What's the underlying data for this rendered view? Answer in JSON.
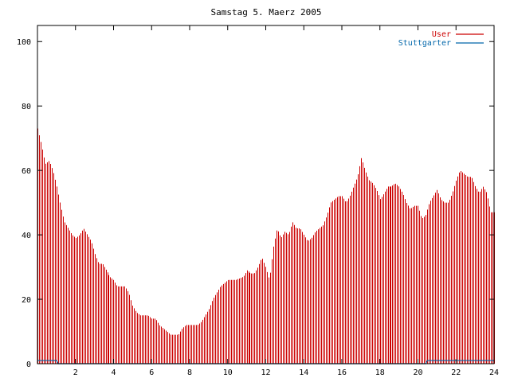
{
  "chart_data": {
    "type": "bar",
    "title": "Samstag 5. Maerz 2005",
    "xlabel": "",
    "ylabel": "",
    "xlim": [
      0,
      24
    ],
    "ylim": [
      0,
      105
    ],
    "x_ticks": [
      2,
      4,
      6,
      8,
      10,
      12,
      14,
      16,
      18,
      20,
      22,
      24
    ],
    "y_ticks": [
      0,
      20,
      40,
      60,
      80,
      100
    ],
    "grid": false,
    "legend_position": "top-right",
    "colors": {
      "user": "#cc0000",
      "stuttgarter": "#0066aa"
    },
    "series": [
      {
        "name": "User",
        "keypoints_hour_value": [
          [
            0.0,
            73
          ],
          [
            0.2,
            68
          ],
          [
            0.4,
            62
          ],
          [
            0.6,
            63
          ],
          [
            0.8,
            60
          ],
          [
            1.0,
            55
          ],
          [
            1.2,
            49
          ],
          [
            1.4,
            44
          ],
          [
            1.6,
            42
          ],
          [
            1.8,
            40
          ],
          [
            2.0,
            39
          ],
          [
            2.2,
            40
          ],
          [
            2.4,
            42
          ],
          [
            2.6,
            40
          ],
          [
            2.8,
            38
          ],
          [
            3.0,
            34
          ],
          [
            3.2,
            31
          ],
          [
            3.4,
            31
          ],
          [
            3.6,
            29
          ],
          [
            3.8,
            27
          ],
          [
            4.0,
            26
          ],
          [
            4.2,
            24
          ],
          [
            4.4,
            24
          ],
          [
            4.6,
            24
          ],
          [
            4.8,
            22
          ],
          [
            5.0,
            18
          ],
          [
            5.2,
            16
          ],
          [
            5.4,
            15
          ],
          [
            5.6,
            15
          ],
          [
            5.8,
            15
          ],
          [
            6.0,
            14
          ],
          [
            6.2,
            14
          ],
          [
            6.4,
            12
          ],
          [
            6.6,
            11
          ],
          [
            6.8,
            10
          ],
          [
            7.0,
            9
          ],
          [
            7.4,
            9
          ],
          [
            7.6,
            11
          ],
          [
            7.8,
            12
          ],
          [
            8.0,
            12
          ],
          [
            8.4,
            12
          ],
          [
            8.6,
            13
          ],
          [
            8.8,
            15
          ],
          [
            9.0,
            17
          ],
          [
            9.2,
            20
          ],
          [
            9.4,
            22
          ],
          [
            9.6,
            24
          ],
          [
            9.8,
            25
          ],
          [
            10.0,
            26
          ],
          [
            10.4,
            26
          ],
          [
            10.8,
            27
          ],
          [
            11.0,
            29
          ],
          [
            11.2,
            28
          ],
          [
            11.4,
            28
          ],
          [
            11.6,
            30
          ],
          [
            11.8,
            33
          ],
          [
            12.0,
            30
          ],
          [
            12.2,
            26
          ],
          [
            12.4,
            36
          ],
          [
            12.6,
            42
          ],
          [
            12.8,
            39
          ],
          [
            13.0,
            41
          ],
          [
            13.2,
            40
          ],
          [
            13.4,
            44
          ],
          [
            13.6,
            42
          ],
          [
            13.8,
            42
          ],
          [
            14.0,
            40
          ],
          [
            14.2,
            38
          ],
          [
            14.4,
            39
          ],
          [
            14.6,
            41
          ],
          [
            14.8,
            42
          ],
          [
            15.0,
            43
          ],
          [
            15.2,
            46
          ],
          [
            15.4,
            50
          ],
          [
            15.6,
            51
          ],
          [
            15.8,
            52
          ],
          [
            16.0,
            52
          ],
          [
            16.2,
            50
          ],
          [
            16.4,
            52
          ],
          [
            16.6,
            55
          ],
          [
            16.8,
            58
          ],
          [
            17.0,
            64
          ],
          [
            17.2,
            60
          ],
          [
            17.4,
            57
          ],
          [
            17.6,
            56
          ],
          [
            17.8,
            54
          ],
          [
            18.0,
            51
          ],
          [
            18.2,
            53
          ],
          [
            18.4,
            55
          ],
          [
            18.6,
            55
          ],
          [
            18.8,
            56
          ],
          [
            19.0,
            55
          ],
          [
            19.2,
            53
          ],
          [
            19.4,
            50
          ],
          [
            19.6,
            48
          ],
          [
            19.8,
            49
          ],
          [
            20.0,
            49
          ],
          [
            20.2,
            45
          ],
          [
            20.4,
            46
          ],
          [
            20.6,
            50
          ],
          [
            20.8,
            52
          ],
          [
            21.0,
            54
          ],
          [
            21.2,
            51
          ],
          [
            21.4,
            50
          ],
          [
            21.6,
            50
          ],
          [
            21.8,
            53
          ],
          [
            22.0,
            57
          ],
          [
            22.2,
            60
          ],
          [
            22.4,
            59
          ],
          [
            22.6,
            58
          ],
          [
            22.8,
            58
          ],
          [
            23.0,
            55
          ],
          [
            23.2,
            53
          ],
          [
            23.4,
            55
          ],
          [
            23.6,
            53
          ],
          [
            23.8,
            47
          ],
          [
            24.0,
            47
          ]
        ]
      },
      {
        "name": "Stuttgarter",
        "keypoints_hour_value": [
          [
            0.0,
            1
          ],
          [
            1.0,
            1
          ],
          [
            1.1,
            0
          ],
          [
            20.4,
            0
          ],
          [
            20.5,
            1
          ],
          [
            24.0,
            1
          ]
        ]
      }
    ],
    "sample_interval_hours": 0.0833
  }
}
